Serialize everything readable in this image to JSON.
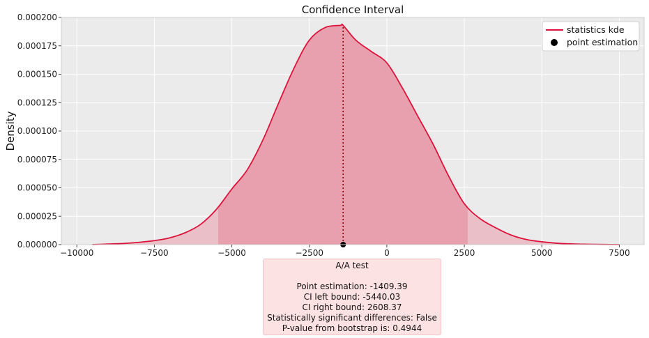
{
  "chart_data": {
    "type": "area",
    "title": "Confidence Interval",
    "xlabel": "",
    "ylabel": "Density",
    "xlim": [
      -10500,
      8300
    ],
    "ylim": [
      0,
      0.0002
    ],
    "xticks": [
      -10000,
      -7500,
      -5000,
      -2500,
      0,
      2500,
      5000,
      7500
    ],
    "xtick_labels": [
      "−10000",
      "−7500",
      "−5000",
      "−2500",
      "0",
      "2500",
      "5000",
      "7500"
    ],
    "yticks": [
      0,
      2.5e-05,
      5e-05,
      7.5e-05,
      0.0001,
      0.000125,
      0.00015,
      0.000175,
      0.0002
    ],
    "ytick_labels": [
      "0.000000",
      "0.000025",
      "0.000050",
      "0.000075",
      "0.000100",
      "0.000125",
      "0.000150",
      "0.000175",
      "0.000200"
    ],
    "grid": true,
    "legend_position": "top-right",
    "series": [
      {
        "name": "statistics kde",
        "color": "#dc143c",
        "x": [
          -9500,
          -9000,
          -8500,
          -8000,
          -7500,
          -7000,
          -6500,
          -6000,
          -5500,
          -5000,
          -4500,
          -4000,
          -3500,
          -3000,
          -2500,
          -2000,
          -1500,
          -1409.39,
          -1000,
          -500,
          0,
          500,
          1000,
          1500,
          2000,
          2500,
          3000,
          3500,
          4000,
          4500,
          5000,
          5500,
          6000,
          6500,
          7000,
          7500
        ],
        "y": [
          0,
          5e-07,
          1e-06,
          2e-06,
          3.5e-06,
          6e-06,
          1.05e-05,
          1.8e-05,
          3.1e-05,
          4.9e-05,
          6.6e-05,
          9.2e-05,
          0.000124,
          0.000155,
          0.00018,
          0.000191,
          0.000193,
          0.000193,
          0.00018,
          0.00017,
          0.00016,
          0.000138,
          0.000113,
          8.8e-05,
          6e-05,
          3.6e-05,
          2.3e-05,
          1.5e-05,
          8.5e-06,
          4.5e-06,
          2.5e-06,
          1.2e-06,
          6e-07,
          3e-07,
          1e-07,
          0
        ]
      },
      {
        "name": "point estimation",
        "type": "scatter",
        "color": "#000000",
        "x": [
          -1409.39
        ],
        "y": [
          0
        ]
      }
    ],
    "confidence_interval": [
      -5440.03,
      2608.37
    ],
    "point_estimate": -1409.39,
    "colors": {
      "ci_fill": "#e8a0ae",
      "tail_fill": "#ebbfc7",
      "plot_background": "#ebebeb",
      "grid": "#ffffff",
      "marker_line": "#8b0000"
    }
  },
  "summary_box": {
    "title": "A/A test",
    "lines": [
      "Point estimation: -1409.39",
      "CI left bound: -5440.03",
      "CI right bound: 2608.37",
      "Statistically significant differences: False",
      "P-value from bootstrap is: 0.4944"
    ]
  }
}
